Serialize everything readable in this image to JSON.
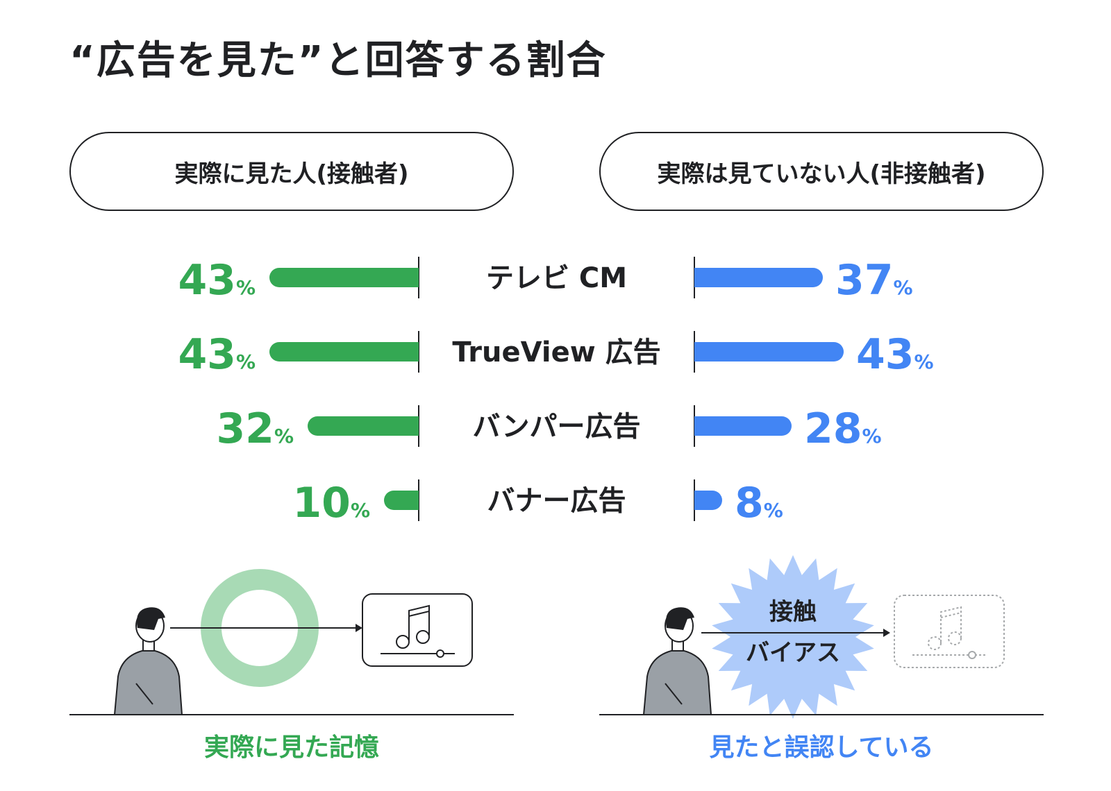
{
  "title": "“広告を見た”と回答する割合",
  "groups": {
    "left": "実際に見た人(接触者)",
    "right": "実際は見ていない人(非接触者)"
  },
  "colors": {
    "green": "#34a853",
    "blue": "#4285f4",
    "light_green": "#a8dab5",
    "light_blue": "#aecbfa",
    "dark": "#202124"
  },
  "chart_data": {
    "type": "bar",
    "orientation": "diverging-horizontal",
    "unit": "%",
    "categories": [
      "テレビ CM",
      "TrueView 広告",
      "バンパー広告",
      "バナー広告"
    ],
    "series": [
      {
        "name": "実際に見た人(接触者)",
        "values": [
          43,
          43,
          32,
          10
        ]
      },
      {
        "name": "実際は見ていない人(非接触者)",
        "values": [
          37,
          43,
          28,
          8
        ]
      }
    ]
  },
  "illustrations": {
    "right_burst_line1": "接触",
    "right_burst_line2": "バイアス",
    "caption_left": "実際に見た記憶",
    "caption_right": "見たと誤認している",
    "left_icon": "music-note-icon",
    "right_icon": "music-note-icon"
  }
}
